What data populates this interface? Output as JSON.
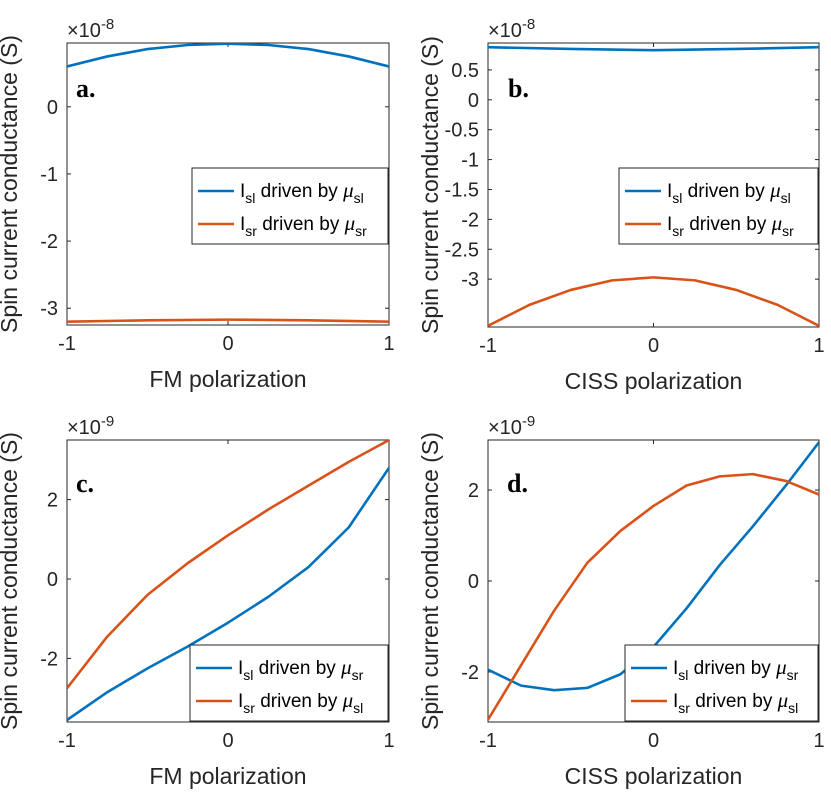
{
  "figure": {
    "shared_ylabel": "Spin current conductance (S)"
  },
  "chart_data": [
    {
      "type": "line",
      "panel": "a.",
      "xlabel": "FM polarization",
      "ylabel": "Spin current conductance (S)",
      "exponent": "-8",
      "xlim": [
        -1,
        1
      ],
      "ylim": [
        -3.25,
        0.95
      ],
      "xticks": [
        -1,
        0,
        1
      ],
      "yticks": [
        -3,
        -2,
        -1,
        0
      ],
      "legend_position": "center-right",
      "series": [
        {
          "name": "I_sl driven by μ_sl",
          "base": "I",
          "sub": "sl",
          "driven": " driven by ",
          "mu": "μ",
          "mu_sub": "sl",
          "color": "#0072BD",
          "x": [
            -1,
            -0.75,
            -0.5,
            -0.25,
            0,
            0.25,
            0.5,
            0.75,
            1
          ],
          "y": [
            0.6,
            0.75,
            0.86,
            0.92,
            0.94,
            0.92,
            0.86,
            0.75,
            0.6
          ]
        },
        {
          "name": "I_sr driven by μ_sr",
          "base": "I",
          "sub": "sr",
          "driven": " driven by ",
          "mu": "μ",
          "mu_sub": "sr",
          "color": "#D95319",
          "x": [
            -1,
            -0.5,
            0,
            0.5,
            1
          ],
          "y": [
            -3.2,
            -3.18,
            -3.17,
            -3.18,
            -3.2
          ]
        }
      ]
    },
    {
      "type": "line",
      "panel": "b.",
      "xlabel": "CISS polarization",
      "ylabel": "Spin current conductance (S)",
      "exponent": "-8",
      "xlim": [
        -1,
        1
      ],
      "ylim": [
        -3.8,
        0.95
      ],
      "xticks": [
        -1,
        0,
        1
      ],
      "yticks": [
        -3,
        -2.5,
        -2,
        -1.5,
        -1,
        -0.5,
        0,
        0.5
      ],
      "legend_position": "center-right",
      "series": [
        {
          "name": "I_sl driven by μ_sl",
          "base": "I",
          "sub": "sl",
          "driven": " driven by ",
          "mu": "μ",
          "mu_sub": "sl",
          "color": "#0072BD",
          "x": [
            -1,
            -0.5,
            0,
            0.5,
            1
          ],
          "y": [
            0.88,
            0.85,
            0.83,
            0.85,
            0.88
          ]
        },
        {
          "name": "I_sr driven by μ_sr",
          "base": "I",
          "sub": "sr",
          "driven": " driven by ",
          "mu": "μ",
          "mu_sub": "sr",
          "color": "#D95319",
          "x": [
            -1,
            -0.75,
            -0.5,
            -0.25,
            0,
            0.25,
            0.5,
            0.75,
            1
          ],
          "y": [
            -3.78,
            -3.43,
            -3.18,
            -3.02,
            -2.97,
            -3.02,
            -3.18,
            -3.43,
            -3.78
          ]
        }
      ]
    },
    {
      "type": "line",
      "panel": "c.",
      "xlabel": "FM polarization",
      "ylabel": "Spin current conductance (S)",
      "exponent": "-9",
      "xlim": [
        -1,
        1
      ],
      "ylim": [
        -3.6,
        3.5
      ],
      "xticks": [
        -1,
        0,
        1
      ],
      "yticks": [
        -2,
        0,
        2
      ],
      "legend_position": "bottom-right",
      "series": [
        {
          "name": "I_sl driven by μ_sr",
          "base": "I",
          "sub": "sl",
          "driven": " driven by ",
          "mu": "μ",
          "mu_sub": "sr",
          "color": "#0072BD",
          "x": [
            -1,
            -0.75,
            -0.5,
            -0.25,
            0,
            0.25,
            0.5,
            0.75,
            1
          ],
          "y": [
            -3.55,
            -2.85,
            -2.25,
            -1.7,
            -1.1,
            -0.45,
            0.3,
            1.3,
            2.8
          ]
        },
        {
          "name": "I_sr driven by μ_sl",
          "base": "I",
          "sub": "sr",
          "driven": " driven by ",
          "mu": "μ",
          "mu_sub": "sl",
          "color": "#D95319",
          "x": [
            -1,
            -0.75,
            -0.5,
            -0.25,
            0,
            0.25,
            0.5,
            0.75,
            1
          ],
          "y": [
            -2.75,
            -1.45,
            -0.4,
            0.4,
            1.1,
            1.75,
            2.35,
            2.95,
            3.5
          ]
        }
      ]
    },
    {
      "type": "line",
      "panel": "d.",
      "xlabel": "CISS polarization",
      "ylabel": "Spin current conductance (S)",
      "exponent": "-9",
      "xlim": [
        -1,
        1
      ],
      "ylim": [
        -3.1,
        3.1
      ],
      "xticks": [
        -1,
        0,
        1
      ],
      "yticks": [
        -2,
        0,
        2
      ],
      "legend_position": "bottom-right",
      "series": [
        {
          "name": "I_sl driven by μ_sr",
          "base": "I",
          "sub": "sl",
          "driven": " driven by ",
          "mu": "μ",
          "mu_sub": "sr",
          "color": "#0072BD",
          "x": [
            -1,
            -0.8,
            -0.6,
            -0.4,
            -0.2,
            0,
            0.2,
            0.4,
            0.6,
            0.8,
            1
          ],
          "y": [
            -1.95,
            -2.3,
            -2.4,
            -2.35,
            -2.05,
            -1.45,
            -0.6,
            0.35,
            1.2,
            2.1,
            3.05
          ]
        },
        {
          "name": "I_sr driven by μ_sl",
          "base": "I",
          "sub": "sr",
          "driven": " driven by ",
          "mu": "μ",
          "mu_sub": "sl",
          "color": "#D95319",
          "x": [
            -1,
            -0.8,
            -0.6,
            -0.4,
            -0.2,
            0,
            0.2,
            0.4,
            0.6,
            0.8,
            1
          ],
          "y": [
            -3.05,
            -1.85,
            -0.65,
            0.4,
            1.1,
            1.65,
            2.1,
            2.3,
            2.35,
            2.2,
            1.9
          ]
        }
      ]
    }
  ]
}
